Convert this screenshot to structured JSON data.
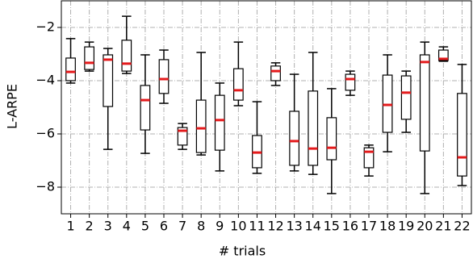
{
  "chart_data": {
    "type": "box",
    "xlabel": "# trials",
    "ylabel": "L-ARPE",
    "categories": [
      "1",
      "2",
      "3",
      "4",
      "5",
      "6",
      "7",
      "8",
      "9",
      "10",
      "11",
      "12",
      "13",
      "14",
      "15",
      "16",
      "17",
      "18",
      "19",
      "20",
      "21",
      "22"
    ],
    "low": [
      -4.09,
      -3.64,
      -6.58,
      -3.73,
      -6.73,
      -4.85,
      -6.58,
      -6.79,
      -7.39,
      -4.94,
      -7.48,
      -4.18,
      -7.39,
      -7.52,
      -8.24,
      -4.55,
      -7.58,
      -6.67,
      -5.94,
      -8.24,
      -3.27,
      -7.94
    ],
    "q1": [
      -4.0,
      -3.58,
      -4.97,
      -3.64,
      -5.85,
      -4.48,
      -6.42,
      -6.7,
      -6.61,
      -4.73,
      -7.27,
      -4.0,
      -7.18,
      -7.18,
      -6.97,
      -4.36,
      -7.27,
      -5.94,
      -5.45,
      -6.64,
      -3.24,
      -7.58
    ],
    "median": [
      -3.67,
      -3.33,
      -3.21,
      -3.36,
      -4.73,
      -3.94,
      -5.88,
      -5.79,
      -5.48,
      -4.36,
      -6.7,
      -3.64,
      -6.27,
      -6.55,
      -6.52,
      -3.94,
      -6.67,
      -4.91,
      -4.45,
      -3.3,
      -3.18,
      -6.88
    ],
    "q3": [
      -3.15,
      -2.73,
      -3.03,
      -2.48,
      -4.18,
      -3.21,
      -5.76,
      -4.73,
      -4.55,
      -3.55,
      -6.06,
      -3.45,
      -5.15,
      -4.39,
      -5.39,
      -3.76,
      -6.52,
      -3.79,
      -3.82,
      -3.03,
      -2.85,
      -4.48
    ],
    "high": [
      -2.42,
      -2.55,
      -2.79,
      -1.58,
      -3.03,
      -2.85,
      -5.61,
      -2.94,
      -4.09,
      -2.55,
      -4.79,
      -3.33,
      -3.76,
      -2.94,
      -4.3,
      -3.64,
      -6.42,
      -3.03,
      -3.64,
      -2.55,
      -2.73,
      -3.39
    ],
    "box_color": "#000000",
    "median_color": "#e41a1c",
    "ylim": [
      -9,
      -1
    ],
    "yticks": [
      {
        "value": -2,
        "label": "−2"
      },
      {
        "value": -4,
        "label": "−4"
      },
      {
        "value": -6,
        "label": "−6"
      },
      {
        "value": -8,
        "label": "−8"
      }
    ],
    "grid": true
  }
}
